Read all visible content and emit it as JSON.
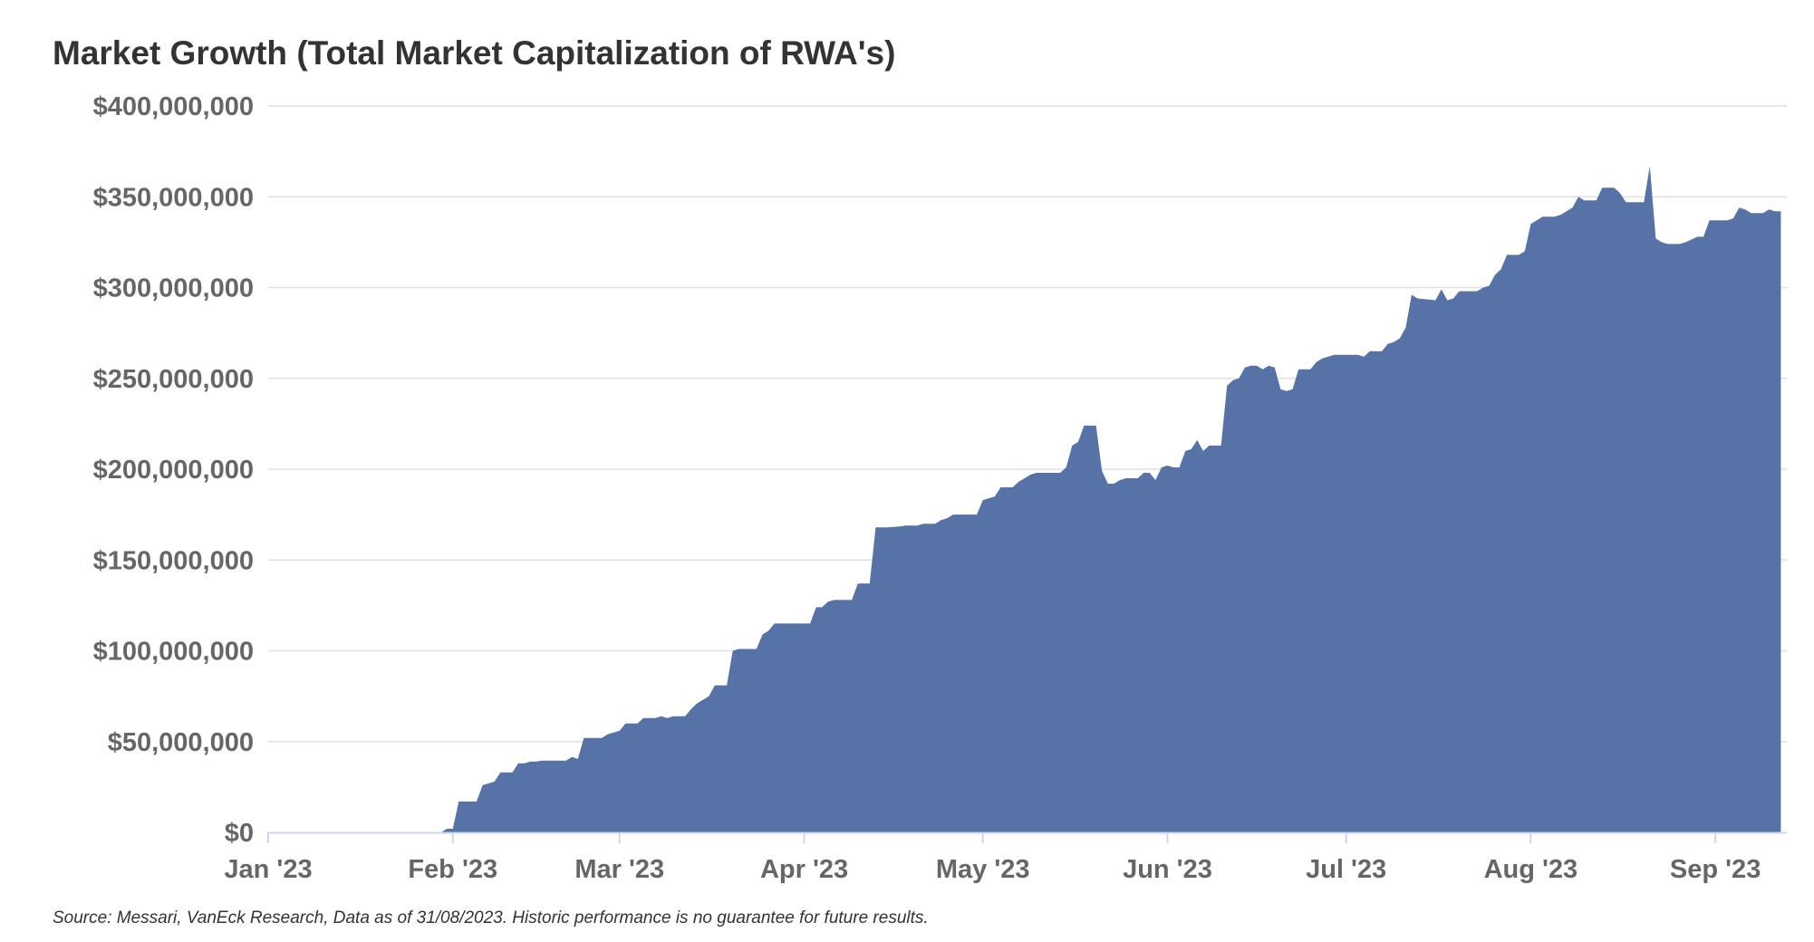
{
  "title": "Market Growth (Total Market Capitalization of RWA's)",
  "footnote": "Source: Messari, VanEck Research, Data as of 31/08/2023. Historic performance is no guarantee for future results.",
  "colors": {
    "area": "#5672a6",
    "grid": "#e0e0e0",
    "axis": "#ccd6eb",
    "text": "#666666"
  },
  "chart_data": {
    "type": "area",
    "xlabel": "",
    "ylabel": "",
    "ylim": [
      0,
      400000000
    ],
    "grid": true,
    "legend": "none",
    "yticks": [
      0,
      50000000,
      100000000,
      150000000,
      200000000,
      250000000,
      300000000,
      350000000,
      400000000
    ],
    "ytick_labels": [
      "$0",
      "$50,000,000",
      "$100,000,000",
      "$150,000,000",
      "$200,000,000",
      "$250,000,000",
      "$300,000,000",
      "$350,000,000",
      "$400,000,000"
    ],
    "xticks": [
      "2023-01-01",
      "2023-02-01",
      "2023-03-01",
      "2023-04-01",
      "2023-05-01",
      "2023-06-01",
      "2023-07-01",
      "2023-08-01",
      "2023-09-01"
    ],
    "xtick_labels": [
      "Jan '23",
      "Feb '23",
      "Mar '23",
      "Apr '23",
      "May '23",
      "Jun '23",
      "Jul '23",
      "Aug '23",
      "Sep '23"
    ],
    "xlim": [
      "2023-01-01",
      "2023-09-13"
    ],
    "series": [
      {
        "points": [
          [
            "2023-01-01",
            0
          ],
          [
            "2023-01-30",
            0
          ],
          [
            "2023-01-31",
            2000000
          ],
          [
            "2023-02-01",
            2000000
          ],
          [
            "2023-02-02",
            17000000
          ],
          [
            "2023-02-05",
            17000000
          ],
          [
            "2023-02-06",
            26000000
          ],
          [
            "2023-02-07",
            27000000
          ],
          [
            "2023-02-08",
            28000000
          ],
          [
            "2023-02-09",
            33000000
          ],
          [
            "2023-02-10",
            33000000
          ],
          [
            "2023-02-11",
            33000000
          ],
          [
            "2023-02-12",
            38000000
          ],
          [
            "2023-02-13",
            38000000
          ],
          [
            "2023-02-14",
            39000000
          ],
          [
            "2023-02-15",
            39000000
          ],
          [
            "2023-02-16",
            39500000
          ],
          [
            "2023-02-20",
            39500000
          ],
          [
            "2023-02-21",
            41500000
          ],
          [
            "2023-02-22",
            40500000
          ],
          [
            "2023-02-23",
            52000000
          ],
          [
            "2023-02-25",
            52000000
          ],
          [
            "2023-02-26",
            52000000
          ],
          [
            "2023-02-27",
            54000000
          ],
          [
            "2023-03-01",
            56000000
          ],
          [
            "2023-03-02",
            60000000
          ],
          [
            "2023-03-04",
            60000000
          ],
          [
            "2023-03-05",
            63000000
          ],
          [
            "2023-03-07",
            63000000
          ],
          [
            "2023-03-08",
            64000000
          ],
          [
            "2023-03-09",
            63000000
          ],
          [
            "2023-03-10",
            64000000
          ],
          [
            "2023-03-12",
            64000000
          ],
          [
            "2023-03-13",
            68000000
          ],
          [
            "2023-03-14",
            71000000
          ],
          [
            "2023-03-15",
            73000000
          ],
          [
            "2023-03-16",
            75000000
          ],
          [
            "2023-03-17",
            81000000
          ],
          [
            "2023-03-18",
            81000000
          ],
          [
            "2023-03-19",
            81000000
          ],
          [
            "2023-03-20",
            100000000
          ],
          [
            "2023-03-21",
            101000000
          ],
          [
            "2023-03-23",
            101000000
          ],
          [
            "2023-03-24",
            101000000
          ],
          [
            "2023-03-25",
            109000000
          ],
          [
            "2023-03-26",
            111000000
          ],
          [
            "2023-03-27",
            115000000
          ],
          [
            "2023-03-29",
            115000000
          ],
          [
            "2023-04-02",
            115000000
          ],
          [
            "2023-04-03",
            124000000
          ],
          [
            "2023-04-04",
            124000000
          ],
          [
            "2023-04-05",
            127000000
          ],
          [
            "2023-04-06",
            128000000
          ],
          [
            "2023-04-08",
            128000000
          ],
          [
            "2023-04-09",
            128000000
          ],
          [
            "2023-04-10",
            137000000
          ],
          [
            "2023-04-12",
            137000000
          ],
          [
            "2023-04-13",
            168000000
          ],
          [
            "2023-04-15",
            168000000
          ],
          [
            "2023-04-17",
            168500000
          ],
          [
            "2023-04-18",
            169000000
          ],
          [
            "2023-04-20",
            169000000
          ],
          [
            "2023-04-21",
            170000000
          ],
          [
            "2023-04-23",
            170000000
          ],
          [
            "2023-04-24",
            172000000
          ],
          [
            "2023-04-25",
            173000000
          ],
          [
            "2023-04-26",
            175000000
          ],
          [
            "2023-04-29",
            175000000
          ],
          [
            "2023-04-30",
            175000000
          ],
          [
            "2023-05-01",
            183000000
          ],
          [
            "2023-05-02",
            184000000
          ],
          [
            "2023-05-03",
            185000000
          ],
          [
            "2023-05-04",
            190000000
          ],
          [
            "2023-05-05",
            190000000
          ],
          [
            "2023-05-06",
            190000000
          ],
          [
            "2023-05-07",
            193000000
          ],
          [
            "2023-05-08",
            195000000
          ],
          [
            "2023-05-09",
            197000000
          ],
          [
            "2023-05-10",
            198000000
          ],
          [
            "2023-05-14",
            198000000
          ],
          [
            "2023-05-15",
            201000000
          ],
          [
            "2023-05-16",
            213000000
          ],
          [
            "2023-05-17",
            215000000
          ],
          [
            "2023-05-18",
            224000000
          ],
          [
            "2023-05-20",
            224000000
          ],
          [
            "2023-05-21",
            199000000
          ],
          [
            "2023-05-22",
            192000000
          ],
          [
            "2023-05-23",
            192000000
          ],
          [
            "2023-05-24",
            194000000
          ],
          [
            "2023-05-25",
            195000000
          ],
          [
            "2023-05-27",
            195000000
          ],
          [
            "2023-05-28",
            198000000
          ],
          [
            "2023-05-29",
            198000000
          ],
          [
            "2023-05-30",
            194000000
          ],
          [
            "2023-05-31",
            201000000
          ],
          [
            "2023-06-01",
            202000000
          ],
          [
            "2023-06-02",
            201000000
          ],
          [
            "2023-06-03",
            201000000
          ],
          [
            "2023-06-04",
            210000000
          ],
          [
            "2023-06-05",
            211000000
          ],
          [
            "2023-06-06",
            216000000
          ],
          [
            "2023-06-07",
            210000000
          ],
          [
            "2023-06-08",
            213000000
          ],
          [
            "2023-06-10",
            213000000
          ],
          [
            "2023-06-11",
            246000000
          ],
          [
            "2023-06-12",
            249000000
          ],
          [
            "2023-06-13",
            250000000
          ],
          [
            "2023-06-14",
            256000000
          ],
          [
            "2023-06-15",
            257000000
          ],
          [
            "2023-06-16",
            257000000
          ],
          [
            "2023-06-17",
            255000000
          ],
          [
            "2023-06-18",
            257000000
          ],
          [
            "2023-06-19",
            256000000
          ],
          [
            "2023-06-20",
            244000000
          ],
          [
            "2023-06-21",
            243000000
          ],
          [
            "2023-06-22",
            244000000
          ],
          [
            "2023-06-23",
            255000000
          ],
          [
            "2023-06-25",
            255000000
          ],
          [
            "2023-06-26",
            259000000
          ],
          [
            "2023-06-27",
            261000000
          ],
          [
            "2023-06-28",
            262000000
          ],
          [
            "2023-06-29",
            263000000
          ],
          [
            "2023-07-03",
            263000000
          ],
          [
            "2023-07-04",
            262000000
          ],
          [
            "2023-07-05",
            265000000
          ],
          [
            "2023-07-07",
            265000000
          ],
          [
            "2023-07-08",
            269000000
          ],
          [
            "2023-07-09",
            270000000
          ],
          [
            "2023-07-10",
            272000000
          ],
          [
            "2023-07-11",
            278000000
          ],
          [
            "2023-07-12",
            296000000
          ],
          [
            "2023-07-13",
            294000000
          ],
          [
            "2023-07-16",
            293000000
          ],
          [
            "2023-07-17",
            299000000
          ],
          [
            "2023-07-18",
            293000000
          ],
          [
            "2023-07-19",
            294000000
          ],
          [
            "2023-07-20",
            298000000
          ],
          [
            "2023-07-23",
            298000000
          ],
          [
            "2023-07-24",
            300000000
          ],
          [
            "2023-07-25",
            301000000
          ],
          [
            "2023-07-26",
            307000000
          ],
          [
            "2023-07-27",
            310000000
          ],
          [
            "2023-07-28",
            318000000
          ],
          [
            "2023-07-30",
            318000000
          ],
          [
            "2023-07-31",
            320000000
          ],
          [
            "2023-08-01",
            335000000
          ],
          [
            "2023-08-02",
            337000000
          ],
          [
            "2023-08-03",
            339000000
          ],
          [
            "2023-08-05",
            339000000
          ],
          [
            "2023-08-06",
            340000000
          ],
          [
            "2023-08-07",
            342000000
          ],
          [
            "2023-08-08",
            344000000
          ],
          [
            "2023-08-09",
            350000000
          ],
          [
            "2023-08-10",
            348000000
          ],
          [
            "2023-08-12",
            348000000
          ],
          [
            "2023-08-13",
            355000000
          ],
          [
            "2023-08-14",
            355000000
          ],
          [
            "2023-08-15",
            355000000
          ],
          [
            "2023-08-16",
            352000000
          ],
          [
            "2023-08-17",
            347000000
          ],
          [
            "2023-08-20",
            347000000
          ],
          [
            "2023-08-21",
            367000000
          ],
          [
            "2023-08-22",
            327000000
          ],
          [
            "2023-08-23",
            325000000
          ],
          [
            "2023-08-24",
            324000000
          ],
          [
            "2023-08-26",
            324000000
          ],
          [
            "2023-08-27",
            325000000
          ],
          [
            "2023-08-29",
            328000000
          ],
          [
            "2023-08-30",
            328000000
          ],
          [
            "2023-08-31",
            337000000
          ],
          [
            "2023-09-03",
            337000000
          ],
          [
            "2023-09-04",
            338000000
          ],
          [
            "2023-09-05",
            344000000
          ],
          [
            "2023-09-06",
            343000000
          ],
          [
            "2023-09-07",
            341000000
          ],
          [
            "2023-09-09",
            341000000
          ],
          [
            "2023-09-10",
            343000000
          ],
          [
            "2023-09-11",
            342000000
          ],
          [
            "2023-09-12",
            342000000
          ]
        ]
      }
    ]
  }
}
